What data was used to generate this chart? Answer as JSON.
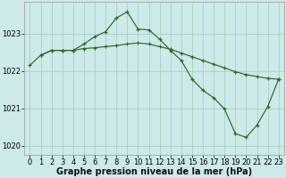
{
  "xlabel": "Graphe pression niveau de la mer (hPa)",
  "background_color": "#cde9e9",
  "grid_color": "#a8cfc0",
  "line_color": "#2d6629",
  "line1_x": [
    0,
    1,
    2,
    3,
    4,
    5,
    6,
    7,
    8,
    9,
    10,
    11,
    12,
    13,
    14,
    15,
    16,
    17,
    18,
    19,
    20,
    21,
    22,
    23
  ],
  "line1_y": [
    1022.15,
    1022.42,
    1022.55,
    1022.55,
    1022.55,
    1022.6,
    1022.62,
    1022.65,
    1022.68,
    1022.72,
    1022.75,
    1022.72,
    1022.65,
    1022.58,
    1022.48,
    1022.38,
    1022.28,
    1022.18,
    1022.08,
    1021.98,
    1021.9,
    1021.85,
    1021.8,
    1021.78
  ],
  "line2_x": [
    1,
    2,
    3,
    4,
    5,
    6,
    7,
    8,
    9,
    10,
    11,
    12,
    13,
    14,
    15,
    16,
    17,
    18,
    19,
    20,
    21,
    22,
    23
  ],
  "line2_y": [
    1022.42,
    1022.55,
    1022.55,
    1022.55,
    1022.72,
    1022.92,
    1023.05,
    1023.42,
    1023.58,
    1023.12,
    1023.1,
    1022.85,
    1022.55,
    1022.28,
    1021.78,
    1021.48,
    1021.28,
    1020.98,
    1020.32,
    1020.22,
    1020.55,
    1021.05,
    1021.78
  ],
  "ylim": [
    1019.75,
    1023.85
  ],
  "yticks": [
    1020,
    1021,
    1022,
    1023
  ],
  "xticks": [
    0,
    1,
    2,
    3,
    4,
    5,
    6,
    7,
    8,
    9,
    10,
    11,
    12,
    13,
    14,
    15,
    16,
    17,
    18,
    19,
    20,
    21,
    22,
    23
  ],
  "xlabel_fontsize": 7.0,
  "tick_fontsize": 6.0
}
